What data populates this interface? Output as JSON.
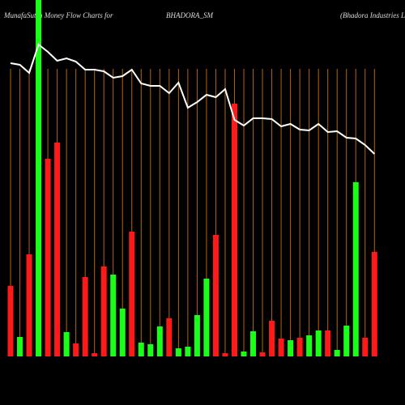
{
  "chart_data": {
    "type": "bar",
    "title": "MunafaSutra  Money Flow  Charts for",
    "symbol": "BHADORA_SM",
    "subtitle": "(Bhadora Industries Limited)",
    "ylim": [
      0,
      440
    ],
    "series": [
      {
        "name": "Money Flow",
        "values": [
          87,
          24,
          126,
          440,
          244,
          264,
          30,
          16,
          98,
          4,
          111,
          101,
          59,
          154,
          17,
          15,
          37,
          47,
          10,
          12,
          51,
          96,
          150,
          4,
          312,
          6,
          31,
          5,
          44,
          22,
          20,
          23,
          26,
          32,
          32,
          8,
          38,
          215,
          23,
          129
        ],
        "colors": [
          "#ff1a1a",
          "#1aff1a",
          "#ff1a1a",
          "#1aff1a",
          "#ff1a1a",
          "#ff1a1a",
          "#1aff1a",
          "#ff1a1a",
          "#ff1a1a",
          "#ff1a1a",
          "#ff1a1a",
          "#1aff1a",
          "#1aff1a",
          "#ff1a1a",
          "#1aff1a",
          "#1aff1a",
          "#1aff1a",
          "#ff1a1a",
          "#1aff1a",
          "#1aff1a",
          "#1aff1a",
          "#1aff1a",
          "#ff1a1a",
          "#ff1a1a",
          "#ff1a1a",
          "#1aff1a",
          "#1aff1a",
          "#ff1a1a",
          "#ff1a1a",
          "#ff1a1a",
          "#1aff1a",
          "#ff1a1a",
          "#1aff1a",
          "#1aff1a",
          "#ff1a1a",
          "#1aff1a",
          "#1aff1a",
          "#1aff1a",
          "#ff1a1a",
          "#ff1a1a"
        ]
      },
      {
        "name": "Price",
        "type": "line",
        "color": "#ffffff",
        "values": [
          362,
          360,
          350,
          385,
          376,
          365,
          368,
          364,
          354,
          354,
          352,
          344,
          346,
          354,
          337,
          334,
          334,
          325,
          338,
          307,
          314,
          323,
          320,
          330,
          292,
          285,
          294,
          294,
          293,
          284,
          287,
          280,
          279,
          287,
          277,
          278,
          270,
          269,
          261,
          250
        ]
      }
    ],
    "grid_color": "#b5650d"
  }
}
